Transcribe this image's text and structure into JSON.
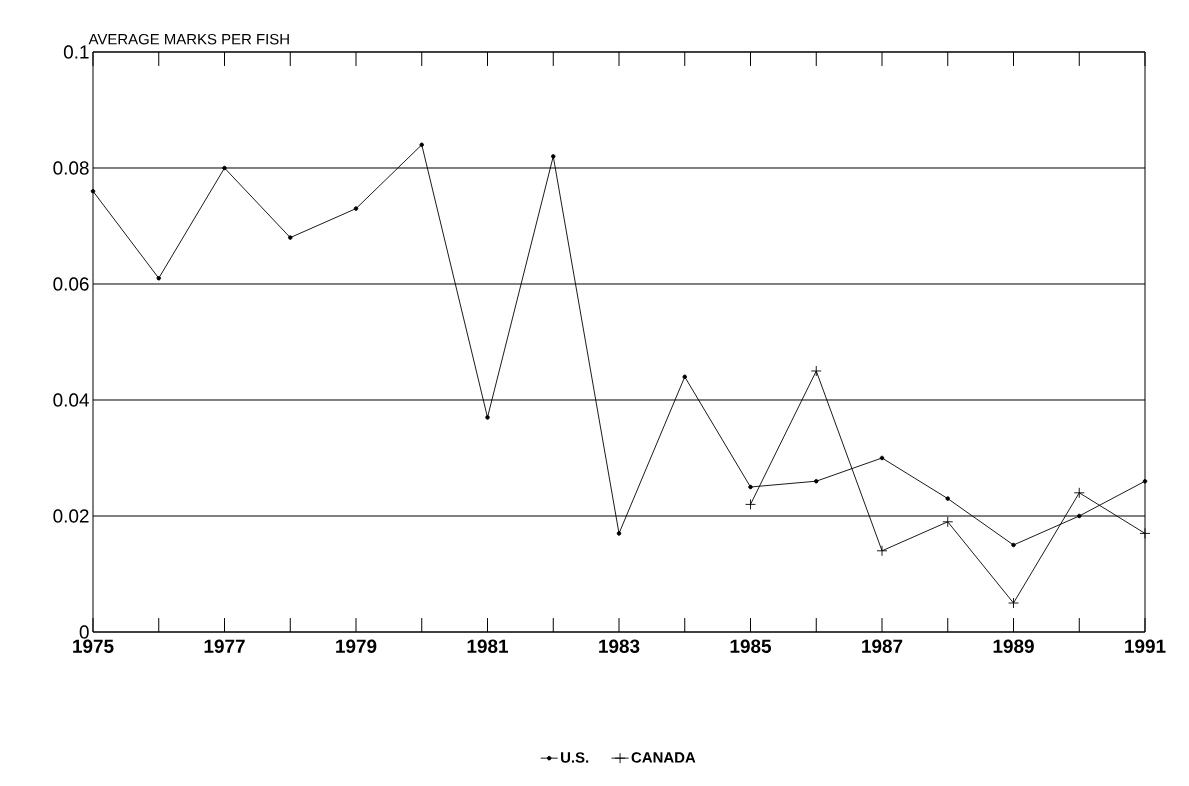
{
  "chart_data": {
    "type": "line",
    "ylabel": "AVERAGE MARKS PER FISH",
    "xlim": [
      1975,
      1991
    ],
    "ylim": [
      0,
      0.1
    ],
    "xticks": [
      1975,
      {
        "value": 1976,
        "label": null
      },
      1977,
      {
        "value": 1978,
        "label": null
      },
      1979,
      {
        "value": 1980,
        "label": null
      },
      1981,
      {
        "value": 1982,
        "label": null
      },
      1983,
      {
        "value": 1984,
        "label": null
      },
      1985,
      {
        "value": 1986,
        "label": null
      },
      1987,
      {
        "value": 1988,
        "label": null
      },
      1989,
      {
        "value": 1990,
        "label": null
      },
      1991
    ],
    "yticks": [
      0,
      0.02,
      0.04,
      0.06,
      0.08,
      0.1
    ],
    "grid": "y",
    "legend": "bottom",
    "line_style": "solid",
    "series": [
      {
        "name": "U.S.",
        "color": "#000000",
        "marker": "circle",
        "x": [
          1975,
          1976,
          1977,
          1978,
          1979,
          1980,
          1981,
          1982,
          1983,
          1984,
          1985,
          1986,
          1987,
          1988,
          1989,
          1990,
          1991
        ],
        "values": [
          0.076,
          0.061,
          0.08,
          0.068,
          0.073,
          0.084,
          0.037,
          0.082,
          0.017,
          0.044,
          0.025,
          0.026,
          0.03,
          0.023,
          0.015,
          0.02,
          0.026
        ]
      },
      {
        "name": "CANADA",
        "color": "#000000",
        "marker": "cross",
        "x": [
          1985,
          1986,
          1987,
          1988,
          1989,
          1990,
          1991
        ],
        "values": [
          0.022,
          0.045,
          0.014,
          0.019,
          0.005,
          0.024,
          0.017
        ]
      }
    ]
  }
}
